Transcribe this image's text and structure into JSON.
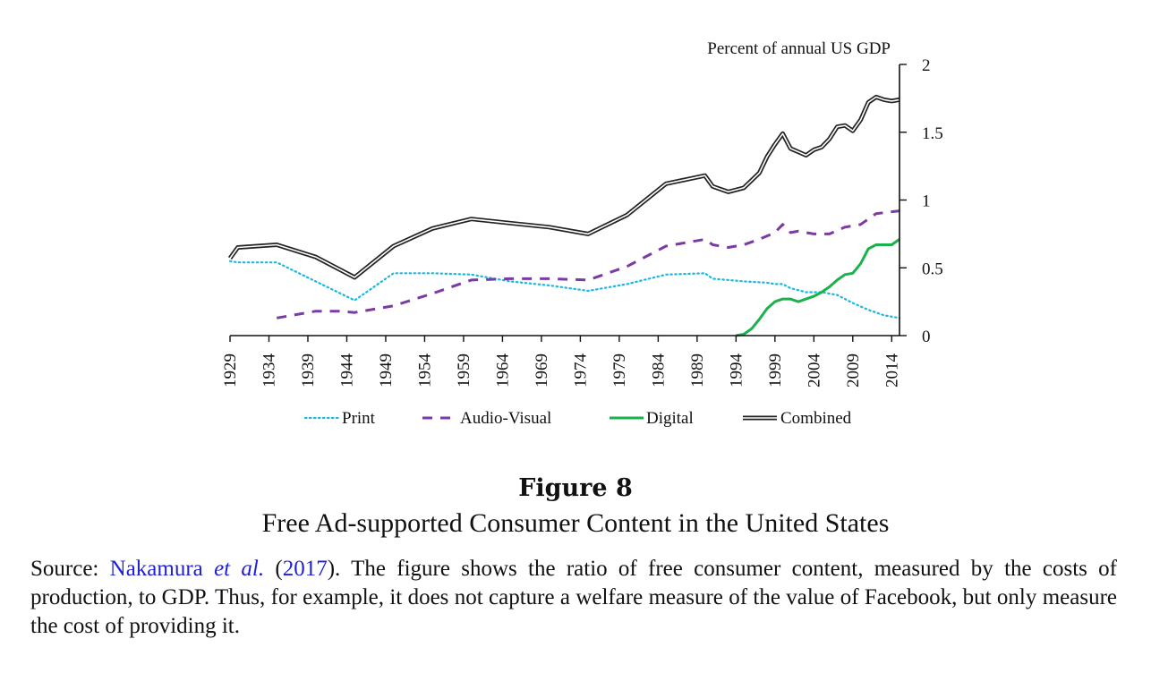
{
  "chart_data": {
    "type": "line",
    "ylabel": "Percent of annual US GDP",
    "ylim": [
      0,
      2
    ],
    "y_ticks": [
      "0",
      "0.5",
      "1",
      "1.5",
      "2"
    ],
    "xlim": [
      1929,
      2015
    ],
    "x_ticks": [
      "1929",
      "1934",
      "1939",
      "1944",
      "1949",
      "1954",
      "1959",
      "1964",
      "1969",
      "1974",
      "1979",
      "1984",
      "1989",
      "1994",
      "1999",
      "2004",
      "2009",
      "2014"
    ],
    "y_axis_position": "right",
    "legend_placement": "bottom",
    "grid": false,
    "series": [
      {
        "name": "Print",
        "color": "#1ab8e0",
        "style": "dotted",
        "x": [
          1929,
          1930,
          1935,
          1940,
          1945,
          1950,
          1955,
          1960,
          1965,
          1970,
          1975,
          1980,
          1985,
          1990,
          1991,
          1995,
          1998,
          1999,
          2000,
          2001,
          2003,
          2005,
          2007,
          2009,
          2011,
          2013,
          2015
        ],
        "y": [
          0.55,
          0.54,
          0.54,
          0.4,
          0.26,
          0.46,
          0.46,
          0.45,
          0.4,
          0.37,
          0.33,
          0.38,
          0.45,
          0.46,
          0.42,
          0.4,
          0.39,
          0.38,
          0.38,
          0.35,
          0.32,
          0.32,
          0.3,
          0.24,
          0.19,
          0.15,
          0.13
        ]
      },
      {
        "name": "Audio-Visual",
        "color": "#7b3aa5",
        "style": "dashed",
        "x": [
          1935,
          1937,
          1940,
          1943,
          1945,
          1950,
          1955,
          1960,
          1965,
          1970,
          1975,
          1980,
          1985,
          1990,
          1991,
          1993,
          1995,
          1997,
          1999,
          2000,
          2001,
          2002,
          2004,
          2006,
          2008,
          2010,
          2012,
          2015
        ],
        "y": [
          0.13,
          0.15,
          0.18,
          0.18,
          0.17,
          0.22,
          0.31,
          0.41,
          0.42,
          0.42,
          0.41,
          0.51,
          0.66,
          0.71,
          0.67,
          0.65,
          0.67,
          0.71,
          0.76,
          0.82,
          0.76,
          0.77,
          0.75,
          0.75,
          0.8,
          0.82,
          0.9,
          0.92
        ]
      },
      {
        "name": "Digital",
        "color": "#1bb24d",
        "style": "solid",
        "x": [
          1994,
          1995,
          1996,
          1997,
          1998,
          1999,
          2000,
          2001,
          2002,
          2003,
          2004,
          2005,
          2006,
          2007,
          2008,
          2009,
          2010,
          2011,
          2012,
          2013,
          2014,
          2015
        ],
        "y": [
          0.0,
          0.01,
          0.05,
          0.12,
          0.2,
          0.25,
          0.27,
          0.27,
          0.25,
          0.27,
          0.29,
          0.32,
          0.36,
          0.41,
          0.45,
          0.46,
          0.53,
          0.64,
          0.67,
          0.67,
          0.67,
          0.71
        ]
      },
      {
        "name": "Combined",
        "color": "#222222",
        "style": "double",
        "x": [
          1929,
          1930,
          1935,
          1940,
          1945,
          1950,
          1955,
          1960,
          1965,
          1970,
          1975,
          1980,
          1985,
          1990,
          1991,
          1992,
          1993,
          1995,
          1997,
          1998,
          1999,
          2000,
          2001,
          2003,
          2004,
          2005,
          2006,
          2007,
          2008,
          2009,
          2010,
          2011,
          2012,
          2013,
          2014,
          2015
        ],
        "y": [
          0.57,
          0.65,
          0.67,
          0.58,
          0.43,
          0.66,
          0.79,
          0.86,
          0.83,
          0.8,
          0.75,
          0.89,
          1.12,
          1.18,
          1.1,
          1.08,
          1.06,
          1.09,
          1.2,
          1.32,
          1.41,
          1.49,
          1.38,
          1.33,
          1.37,
          1.39,
          1.45,
          1.54,
          1.55,
          1.51,
          1.59,
          1.72,
          1.76,
          1.74,
          1.73,
          1.74
        ]
      }
    ]
  },
  "figure": {
    "title": "Figure 8",
    "subtitle": "Free Ad-supported Consumer Content in the United States"
  },
  "caption": {
    "prefix": "Source: ",
    "author": "Nakamura ",
    "etal": "et al.",
    "open_paren": " (",
    "year": "2017",
    "body": "). The figure shows the ratio of free consumer content, measured by the costs of production, to GDP. Thus, for example, it does not capture a welfare measure of the value of Facebook, but only measure the cost of providing it."
  }
}
